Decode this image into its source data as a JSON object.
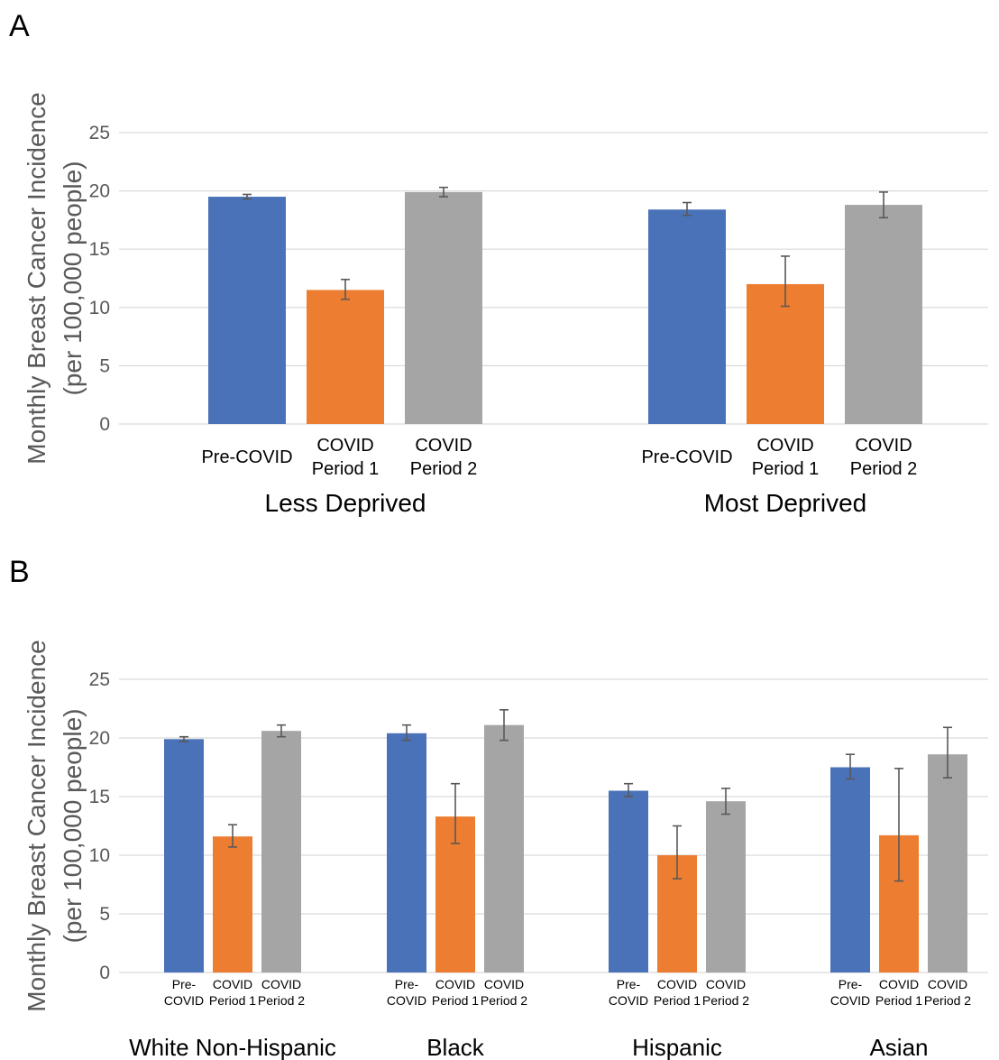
{
  "colors": {
    "pre": "#4a72b8",
    "p1": "#ed7d31",
    "p2": "#a5a5a5",
    "grid": "#d9d9d9",
    "err": "#595959",
    "axisText": "#595959",
    "text": "#000000"
  },
  "chart_data": [
    {
      "panel": "A",
      "type": "bar",
      "ylabel": [
        "Monthly Breast Cancer Incidence",
        "(per 100,000 people)"
      ],
      "ylim": [
        0,
        25
      ],
      "yticks": [
        "0",
        "5",
        "10",
        "15",
        "20",
        "25"
      ],
      "grid": true,
      "groups": [
        {
          "name": "Less Deprived",
          "bars": [
            {
              "label": [
                "Pre-COVID"
              ],
              "value": 19.5,
              "err_low": 19.3,
              "err_high": 19.7,
              "color_key": "pre"
            },
            {
              "label": [
                "COVID",
                "Period 1"
              ],
              "value": 11.5,
              "err_low": 10.7,
              "err_high": 12.4,
              "color_key": "p1"
            },
            {
              "label": [
                "COVID",
                "Period 2"
              ],
              "value": 19.9,
              "err_low": 19.5,
              "err_high": 20.3,
              "color_key": "p2"
            }
          ]
        },
        {
          "name": "Most Deprived",
          "bars": [
            {
              "label": [
                "Pre-COVID"
              ],
              "value": 18.4,
              "err_low": 17.9,
              "err_high": 19.0,
              "color_key": "pre"
            },
            {
              "label": [
                "COVID",
                "Period 1"
              ],
              "value": 12.0,
              "err_low": 10.1,
              "err_high": 14.4,
              "color_key": "p1"
            },
            {
              "label": [
                "COVID",
                "Period 2"
              ],
              "value": 18.8,
              "err_low": 17.7,
              "err_high": 19.9,
              "color_key": "p2"
            }
          ]
        }
      ]
    },
    {
      "panel": "B",
      "type": "bar",
      "ylabel": [
        "Monthly Breast Cancer Incidence",
        "(per 100,000 people)"
      ],
      "ylim": [
        0,
        25
      ],
      "yticks": [
        "0",
        "5",
        "10",
        "15",
        "20",
        "25"
      ],
      "grid": true,
      "groups": [
        {
          "name": "White Non-Hispanic",
          "bars": [
            {
              "label": [
                "Pre-",
                "COVID"
              ],
              "value": 19.9,
              "err_low": 19.7,
              "err_high": 20.1,
              "color_key": "pre"
            },
            {
              "label": [
                "COVID",
                "Period 1"
              ],
              "value": 11.6,
              "err_low": 10.7,
              "err_high": 12.6,
              "color_key": "p1"
            },
            {
              "label": [
                "COVID",
                "Period 2"
              ],
              "value": 20.6,
              "err_low": 20.1,
              "err_high": 21.1,
              "color_key": "p2"
            }
          ]
        },
        {
          "name": "Black",
          "bars": [
            {
              "label": [
                "Pre-",
                "COVID"
              ],
              "value": 20.4,
              "err_low": 19.8,
              "err_high": 21.1,
              "color_key": "pre"
            },
            {
              "label": [
                "COVID",
                "Period 1"
              ],
              "value": 13.3,
              "err_low": 11.0,
              "err_high": 16.1,
              "color_key": "p1"
            },
            {
              "label": [
                "COVID",
                "Period 2"
              ],
              "value": 21.1,
              "err_low": 19.8,
              "err_high": 22.4,
              "color_key": "p2"
            }
          ]
        },
        {
          "name": "Hispanic",
          "bars": [
            {
              "label": [
                "Pre-",
                "COVID"
              ],
              "value": 15.5,
              "err_low": 15.0,
              "err_high": 16.1,
              "color_key": "pre"
            },
            {
              "label": [
                "COVID",
                "Period 1"
              ],
              "value": 10.0,
              "err_low": 8.0,
              "err_high": 12.5,
              "color_key": "p1"
            },
            {
              "label": [
                "COVID",
                "Period 2"
              ],
              "value": 14.6,
              "err_low": 13.5,
              "err_high": 15.7,
              "color_key": "p2"
            }
          ]
        },
        {
          "name": "Asian",
          "bars": [
            {
              "label": [
                "Pre-",
                "COVID"
              ],
              "value": 17.5,
              "err_low": 16.5,
              "err_high": 18.6,
              "color_key": "pre"
            },
            {
              "label": [
                "COVID",
                "Period 1"
              ],
              "value": 11.7,
              "err_low": 7.8,
              "err_high": 17.4,
              "color_key": "p1"
            },
            {
              "label": [
                "COVID",
                "Period 2"
              ],
              "value": 18.6,
              "err_low": 16.6,
              "err_high": 20.9,
              "color_key": "p2"
            }
          ]
        }
      ]
    }
  ]
}
